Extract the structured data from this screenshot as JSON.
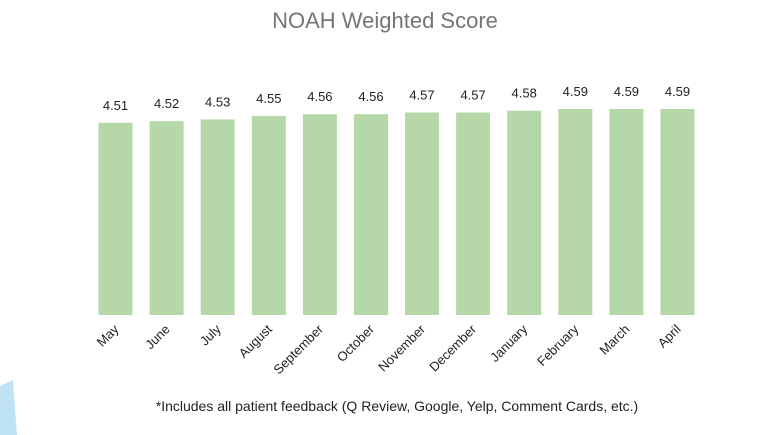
{
  "chart_data": {
    "type": "bar",
    "title": "NOAH Weighted Score",
    "categories": [
      "May",
      "June",
      "July",
      "August",
      "September",
      "October",
      "November",
      "December",
      "January",
      "February",
      "March",
      "April"
    ],
    "values": [
      4.51,
      4.52,
      4.53,
      4.55,
      4.56,
      4.56,
      4.57,
      4.57,
      4.58,
      4.59,
      4.59,
      4.59
    ],
    "value_labels": [
      "4.51",
      "4.52",
      "4.53",
      "4.55",
      "4.56",
      "4.56",
      "4.57",
      "4.57",
      "4.58",
      "4.59",
      "4.59",
      "4.59"
    ],
    "bar_color": "#b6d7a8",
    "xlabel": "",
    "ylabel": "",
    "grid": false,
    "legend": "none"
  },
  "footnote": "*Includes all patient feedback (Q Review, Google, Yelp, Comment Cards, etc.)",
  "colors": {
    "background": "#ffffff",
    "title": "#757575",
    "text": "#222222",
    "corner_shape": "#bfe3f5"
  }
}
